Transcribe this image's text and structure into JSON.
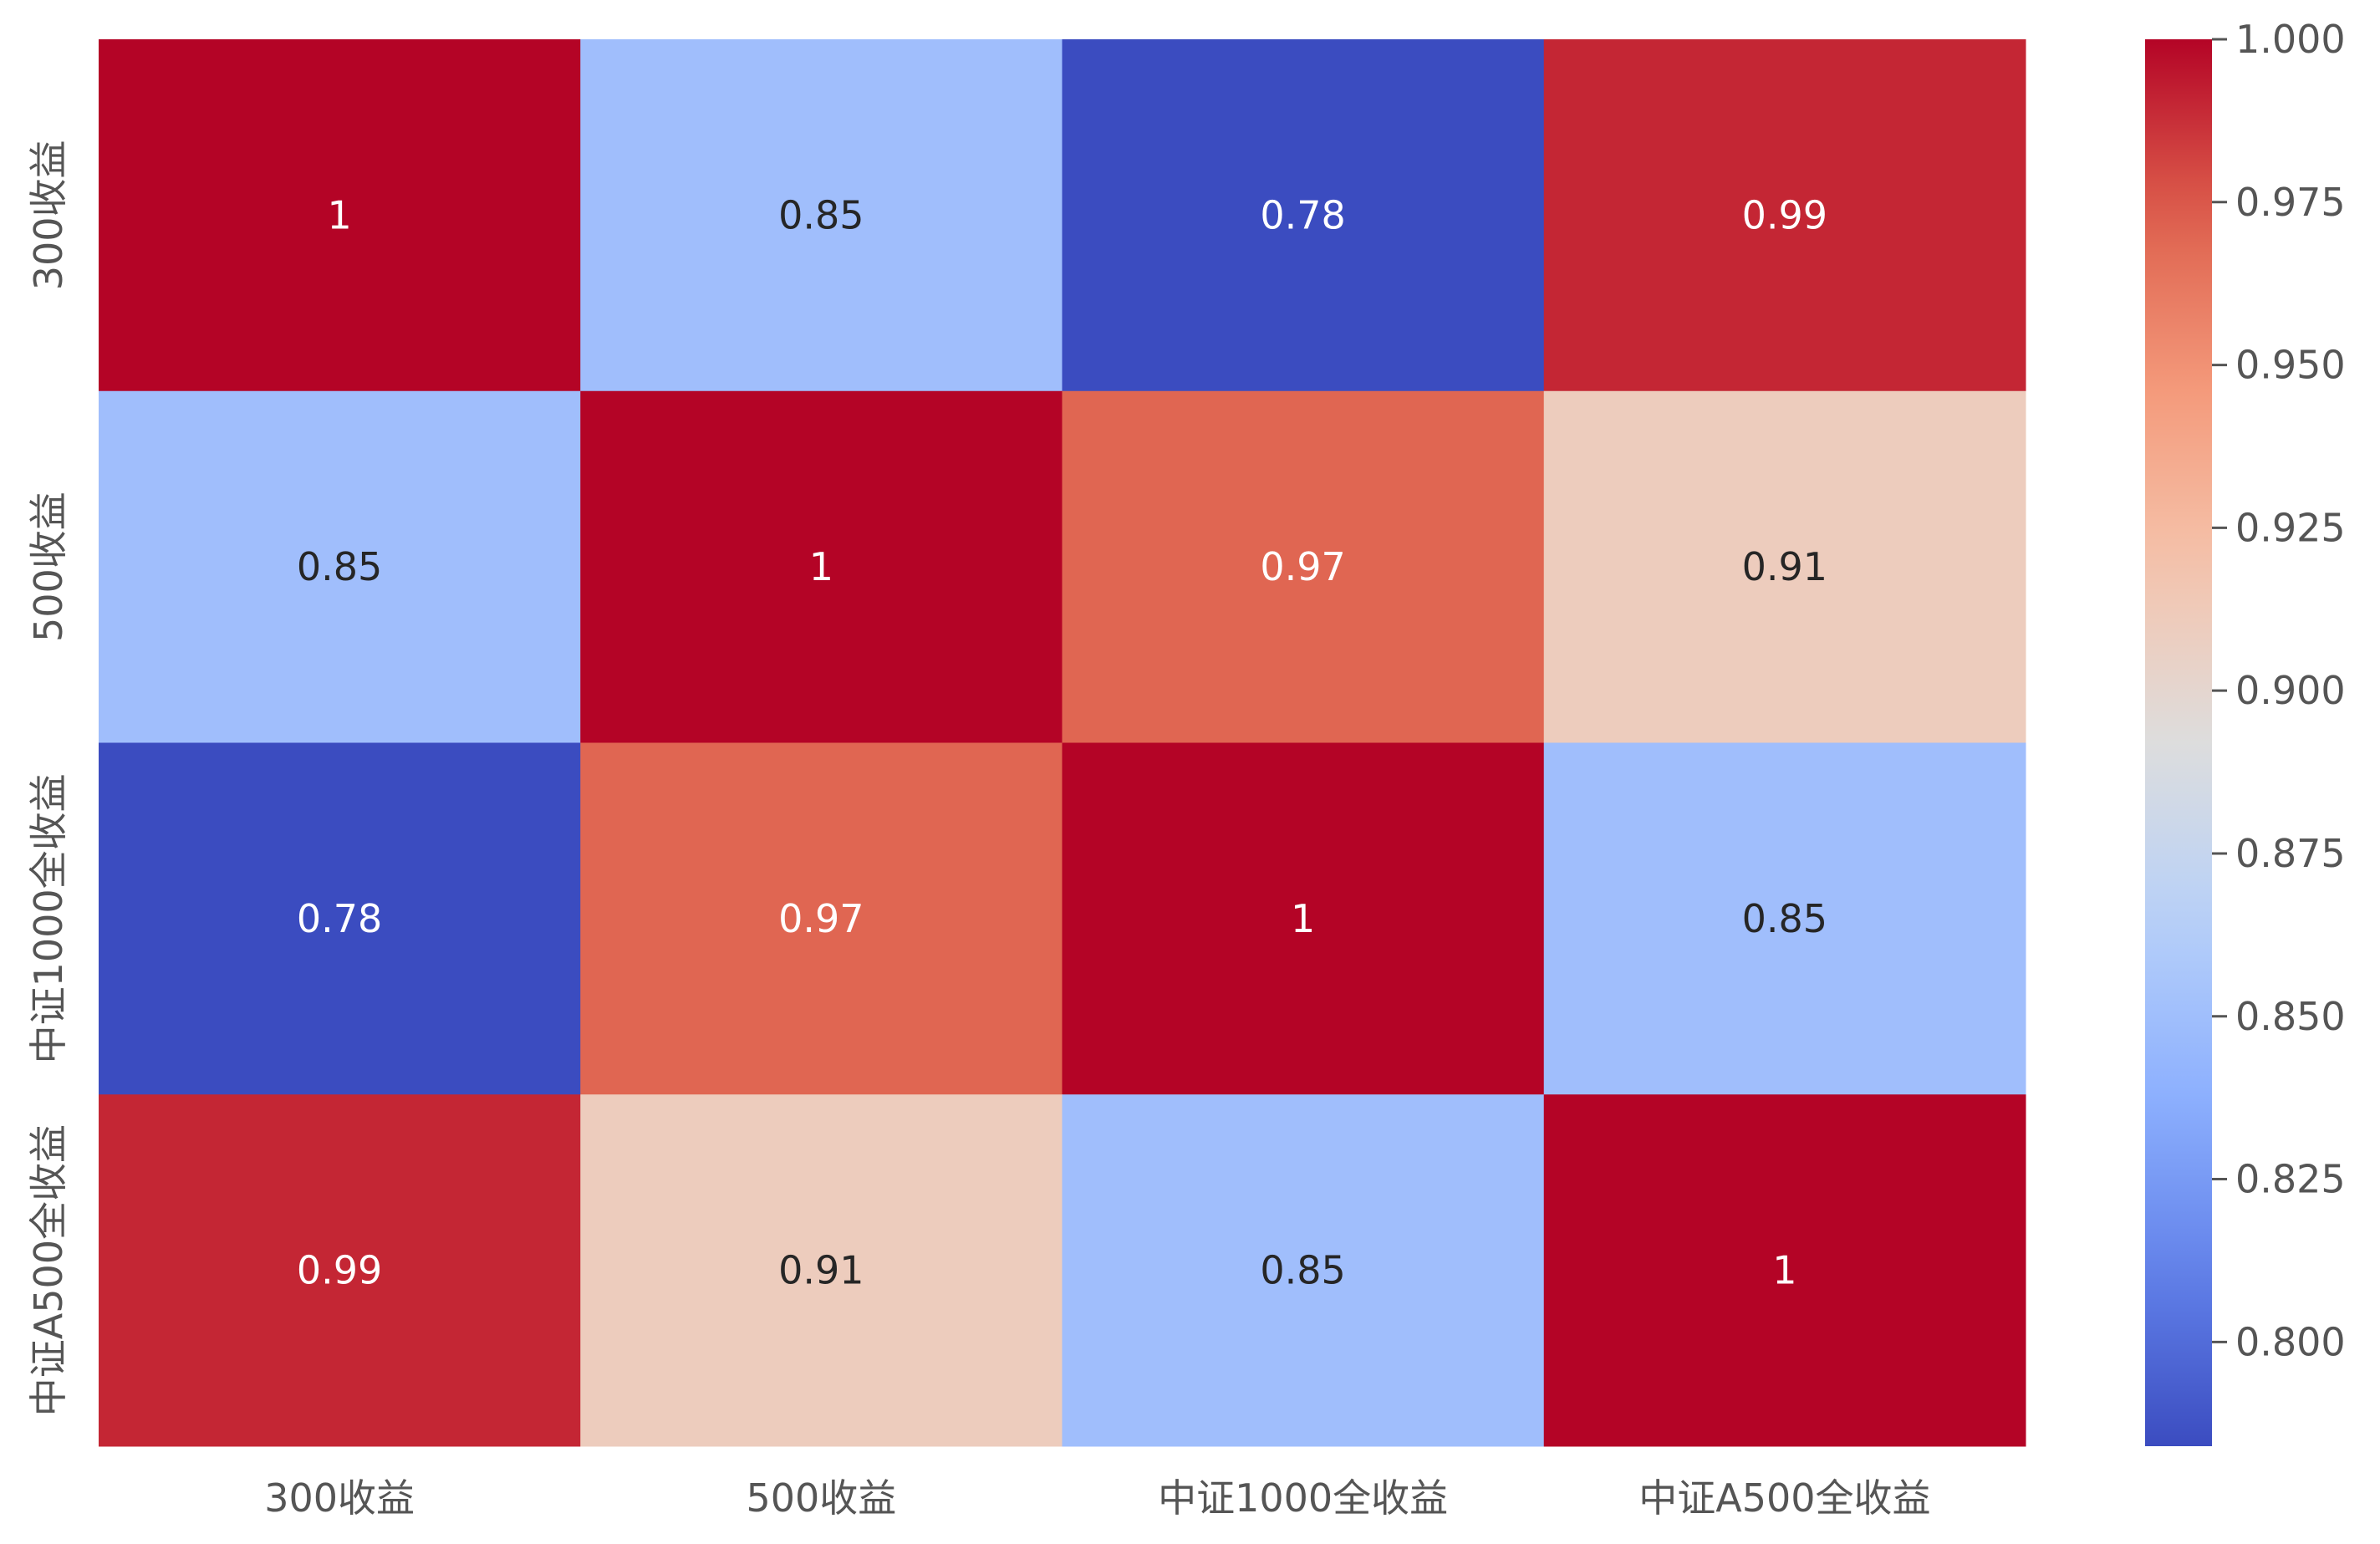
{
  "chart_data": {
    "type": "heatmap",
    "title": "",
    "xlabel": "",
    "ylabel": "",
    "x_categories": [
      "300收益",
      "500收益",
      "中证1000全收益",
      "中证A500全收益"
    ],
    "y_categories": [
      "300收益",
      "500收益",
      "中证1000全收益",
      "中证A500全收益"
    ],
    "values": [
      [
        1.0,
        0.85,
        0.78,
        0.99
      ],
      [
        0.85,
        1.0,
        0.97,
        0.91
      ],
      [
        0.78,
        0.97,
        1.0,
        0.85
      ],
      [
        0.99,
        0.91,
        0.85,
        1.0
      ]
    ],
    "annotations": [
      [
        "1",
        "0.85",
        "0.78",
        "0.99"
      ],
      [
        "0.85",
        "1",
        "0.97",
        "0.91"
      ],
      [
        "0.78",
        "0.97",
        "1",
        "0.85"
      ],
      [
        "0.99",
        "0.91",
        "0.85",
        "1"
      ]
    ],
    "colormap": "coolwarm",
    "vmin": 0.784,
    "vmax": 1.0,
    "colorbar": {
      "ticks": [
        0.8,
        0.825,
        0.85,
        0.875,
        0.9,
        0.925,
        0.95,
        0.975,
        1.0
      ],
      "tick_labels": [
        "0.800",
        "0.825",
        "0.850",
        "0.875",
        "0.900",
        "0.925",
        "0.950",
        "0.975",
        "1.000"
      ],
      "placement": "right"
    },
    "grid": false,
    "legend": "none"
  }
}
